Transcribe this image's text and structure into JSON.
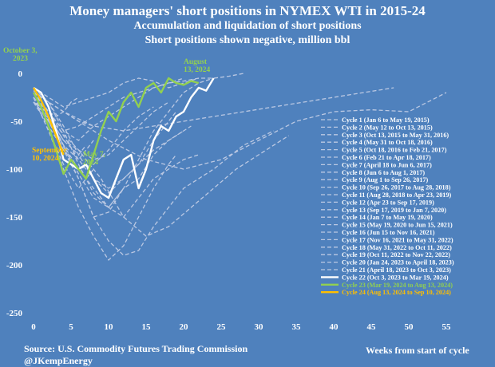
{
  "chart_data": {
    "type": "line",
    "title": "Money managers' short positions in  NYMEX WTI in 2015-24",
    "subtitle": "Accumulation and liquidation of  short positions",
    "subtitle2": "Short positions shown negative, million bbl",
    "xlabel": "Weeks from start of cycle",
    "ylabel": "",
    "xlim": [
      0,
      60
    ],
    "ylim": [
      -250,
      0
    ],
    "xticks": [
      0,
      5,
      10,
      15,
      20,
      25,
      30,
      35,
      40,
      45,
      50,
      55
    ],
    "yticks": [
      0,
      -50,
      -100,
      -150,
      -200,
      -250
    ],
    "grid": false,
    "legend_position": "right",
    "source": "Source: U.S. Commodity Futures Trading Commission",
    "handle": "@JKempEnergy",
    "colors": {
      "background": "#4f81bd",
      "history": "#bcc9e3",
      "cycle22": "#ffffff",
      "cycle23": "#92d050",
      "cycle24": "#ffc000"
    },
    "annotations": [
      {
        "text": "October 3,",
        "text2": "2023",
        "color": "#92d050"
      },
      {
        "text": "August",
        "text2": "13, 2024",
        "color": "#92d050"
      },
      {
        "text": "May 7,",
        "text2": "2024",
        "color": "#92d050"
      },
      {
        "text": "September",
        "text2": "10, 2024",
        "color": "#ffc000"
      }
    ],
    "series": [
      {
        "name": "Cycle 1 (Jan 6 to May 19, 2015)",
        "color": "#bcc9e3",
        "dash": true,
        "x": [
          0,
          2,
          4,
          6,
          8,
          10,
          12,
          14,
          16,
          18,
          19
        ],
        "y": [
          -18,
          -30,
          -55,
          -85,
          -110,
          -125,
          -110,
          -95,
          -70,
          -50,
          -40
        ]
      },
      {
        "name": "Cycle 2 (May 12 to Oct 13, 2015)",
        "color": "#bcc9e3",
        "dash": true,
        "x": [
          0,
          2,
          4,
          6,
          8,
          10,
          12,
          14,
          16,
          18,
          20,
          22
        ],
        "y": [
          -30,
          -50,
          -75,
          -100,
          -120,
          -140,
          -150,
          -130,
          -110,
          -100,
          -90,
          -85
        ]
      },
      {
        "name": "Cycle 3 (Oct 13, 2015 to May 31, 2016)",
        "color": "#bcc9e3",
        "dash": true,
        "x": [
          0,
          3,
          6,
          8,
          10,
          12,
          14,
          16,
          18,
          20,
          24,
          28,
          32
        ],
        "y": [
          -25,
          -60,
          -110,
          -150,
          -175,
          -190,
          -185,
          -160,
          -140,
          -120,
          -100,
          -75,
          -60
        ]
      },
      {
        "name": "Cycle 4 (May 31 to Oct 18, 2016)",
        "color": "#bcc9e3",
        "dash": true,
        "x": [
          0,
          2,
          4,
          6,
          8,
          10,
          12,
          14,
          16,
          18,
          20
        ],
        "y": [
          -20,
          -45,
          -75,
          -105,
          -130,
          -140,
          -120,
          -110,
          -85,
          -70,
          -60
        ]
      },
      {
        "name": "Cycle 5 (Oct 18, 2016 to Feb 21, 2017)",
        "color": "#bcc9e3",
        "dash": true,
        "x": [
          0,
          2,
          4,
          6,
          8,
          10,
          12,
          14,
          16,
          18
        ],
        "y": [
          -25,
          -45,
          -70,
          -80,
          -90,
          -85,
          -70,
          -55,
          -40,
          -30
        ]
      },
      {
        "name": "Cycle 6 (Feb 21 to Apr 18, 2017)",
        "color": "#bcc9e3",
        "dash": true,
        "x": [
          0,
          2,
          4,
          6,
          8
        ],
        "y": [
          -20,
          -40,
          -60,
          -70,
          -55
        ]
      },
      {
        "name": "Cycle 7 (April 18 to Jun 6, 2017)",
        "color": "#bcc9e3",
        "dash": true,
        "x": [
          0,
          2,
          4,
          6,
          7
        ],
        "y": [
          -20,
          -45,
          -70,
          -85,
          -75
        ]
      },
      {
        "name": "Cycle 8  (Jun 6 to Aug 1, 2017)",
        "color": "#bcc9e3",
        "dash": true,
        "x": [
          0,
          2,
          4,
          6,
          8
        ],
        "y": [
          -25,
          -60,
          -95,
          -120,
          -100
        ]
      },
      {
        "name": "Cycle 9 (Aug 1 to Sep 26, 2017)",
        "color": "#bcc9e3",
        "dash": true,
        "x": [
          0,
          2,
          4,
          6,
          8
        ],
        "y": [
          -20,
          -45,
          -75,
          -90,
          -70
        ]
      },
      {
        "name": "Cycle 10 (Sep 26, 2017 to Aug 28, 2018)",
        "color": "#bcc9e3",
        "dash": true,
        "x": [
          0,
          4,
          8,
          12,
          16,
          20,
          24,
          28,
          32,
          36,
          40,
          44,
          48
        ],
        "y": [
          -20,
          -40,
          -55,
          -60,
          -55,
          -50,
          -45,
          -40,
          -35,
          -30,
          -25,
          -20,
          -15
        ]
      },
      {
        "name": "Cycle 11 (Aug 28, 2018 to Apr 23, 2019)",
        "color": "#bcc9e3",
        "dash": true,
        "x": [
          0,
          3,
          6,
          9,
          12,
          15,
          18,
          21,
          24,
          27,
          30,
          33,
          34
        ],
        "y": [
          -30,
          -55,
          -80,
          -110,
          -150,
          -170,
          -160,
          -140,
          -120,
          -100,
          -85,
          -70,
          -65
        ]
      },
      {
        "name": "Cycle 12 (Apr 23 to Sep 17, 2019)",
        "color": "#bcc9e3",
        "dash": true,
        "x": [
          0,
          2,
          4,
          6,
          8,
          10,
          12,
          14,
          16,
          18,
          20,
          21
        ],
        "y": [
          -20,
          -40,
          -65,
          -90,
          -110,
          -120,
          -110,
          -95,
          -80,
          -70,
          -60,
          -55
        ]
      },
      {
        "name": "Cycle 13 (Sep 17, 2019  to Jan 7, 2020)",
        "color": "#bcc9e3",
        "dash": true,
        "x": [
          0,
          2,
          4,
          6,
          8,
          10,
          12,
          14,
          16
        ],
        "y": [
          -30,
          -55,
          -80,
          -100,
          -95,
          -80,
          -60,
          -45,
          -35
        ]
      },
      {
        "name": "Cycle 14 (Jan 7 to May 19, 2020)",
        "color": "#bcc9e3",
        "dash": true,
        "x": [
          0,
          2,
          4,
          6,
          8,
          10,
          12,
          14,
          16,
          18,
          19
        ],
        "y": [
          -25,
          -60,
          -100,
          -140,
          -170,
          -195,
          -180,
          -150,
          -120,
          -95,
          -85
        ]
      },
      {
        "name": "Cycle 15 (May 19, 2020 to Jun 15, 2021)",
        "color": "#bcc9e3",
        "dash": true,
        "x": [
          0,
          5,
          10,
          15,
          20,
          25,
          30,
          35,
          40,
          45,
          50,
          55
        ],
        "y": [
          -20,
          -45,
          -70,
          -90,
          -100,
          -90,
          -70,
          -50,
          -40,
          -38,
          -40,
          -20
        ]
      },
      {
        "name": "Cycle 16 (Jun 15 to Nov 16, 2021)",
        "color": "#bcc9e3",
        "dash": true,
        "x": [
          0,
          2,
          4,
          6,
          8,
          10,
          12,
          14,
          16,
          18,
          20,
          22
        ],
        "y": [
          -15,
          -25,
          -35,
          -30,
          -25,
          -20,
          -10,
          -5,
          -8,
          -15,
          -10,
          -5
        ]
      },
      {
        "name": "Cycle 17 (Nov 16, 2021 to May 31, 2022)",
        "color": "#bcc9e3",
        "dash": true,
        "x": [
          0,
          2,
          4,
          6,
          8,
          10,
          12,
          14,
          16,
          18,
          20,
          22,
          24,
          26,
          28
        ],
        "y": [
          -30,
          -40,
          -60,
          -55,
          -45,
          -35,
          -25,
          -20,
          -15,
          -10,
          -8,
          -5,
          -5,
          -3,
          0
        ]
      },
      {
        "name": "Cycle 18 (May 31, 2022 to Oct 11, 2022)",
        "color": "#bcc9e3",
        "dash": true,
        "x": [
          0,
          2,
          4,
          6,
          8,
          10,
          12,
          14,
          16,
          18,
          20
        ],
        "y": [
          -20,
          -30,
          -40,
          -50,
          -55,
          -45,
          -35,
          -25,
          -15,
          -10,
          -5
        ]
      },
      {
        "name": "Cycle 19 (Oct 11, 2022 to Nov 22, 2022)",
        "color": "#bcc9e3",
        "dash": true,
        "x": [
          0,
          1,
          2,
          3,
          4,
          5,
          6
        ],
        "y": [
          -20,
          -30,
          -40,
          -45,
          -40,
          -30,
          -25
        ]
      },
      {
        "name": "Cycle 20 (Jan 24, 2023 to April 18, 2023)",
        "color": "#bcc9e3",
        "dash": true,
        "x": [
          0,
          2,
          4,
          6,
          8,
          10,
          12
        ],
        "y": [
          -25,
          -50,
          -80,
          -110,
          -150,
          -145,
          -120
        ]
      },
      {
        "name": "Cycle 21 (April 18, 2023 to Oct 3, 2023)",
        "color": "#bcc9e3",
        "dash": true,
        "x": [
          0,
          2,
          4,
          6,
          8,
          10,
          12,
          14,
          16,
          18,
          20,
          22,
          24
        ],
        "y": [
          -15,
          -30,
          -60,
          -95,
          -125,
          -140,
          -120,
          -90,
          -60,
          -40,
          -20,
          -10,
          -5
        ]
      },
      {
        "name": "Cycle 22 (Oct 3, 2023 to Mar 19, 2024)",
        "color": "#ffffff",
        "dash": false,
        "x": [
          0,
          1,
          2,
          3,
          4,
          5,
          6,
          7,
          8,
          9,
          10,
          11,
          12,
          13,
          14,
          15,
          16,
          17,
          18,
          19,
          20,
          21,
          22,
          23,
          24
        ],
        "y": [
          -15,
          -20,
          -35,
          -60,
          -90,
          -95,
          -100,
          -95,
          -110,
          -125,
          -130,
          -110,
          -90,
          -85,
          -120,
          -100,
          -70,
          -55,
          -60,
          -45,
          -40,
          -25,
          -15,
          -18,
          -5
        ]
      },
      {
        "name": "Cycle 23 (Mar 19, 2024 to Aug 13, 2024)",
        "color": "#92d050",
        "dash": false,
        "x": [
          0,
          1,
          2,
          3,
          4,
          5,
          6,
          7,
          8,
          9,
          10,
          11,
          12,
          13,
          14,
          15,
          16,
          17,
          18,
          19,
          20,
          21,
          22
        ],
        "y": [
          -20,
          -35,
          -55,
          -80,
          -105,
          -90,
          -100,
          -110,
          -85,
          -60,
          -40,
          -50,
          -30,
          -20,
          -35,
          -15,
          -10,
          -20,
          -5,
          -10,
          -12,
          -8,
          -10
        ]
      },
      {
        "name": "Cycle 24 (Aug 13, 2024 to Sep 10, 2024)",
        "color": "#ffc000",
        "dash": false,
        "x": [
          0,
          1,
          2,
          3,
          4
        ],
        "y": [
          -15,
          -28,
          -45,
          -65,
          -85
        ]
      }
    ]
  }
}
